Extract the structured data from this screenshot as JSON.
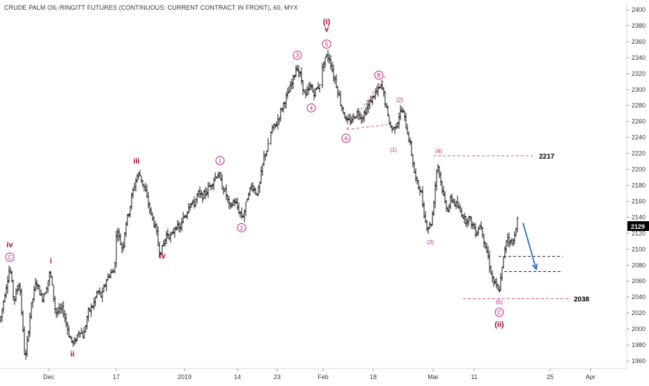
{
  "chart_data": {
    "type": "ohlc",
    "title": "CRUDE PALM OIL-RINGITT FUTURES (CONTINUOUS: CURRENT CONTRACT IN FRONT), 60, MYX",
    "y_ticks": [
      1960,
      1980,
      2000,
      2020,
      2040,
      2060,
      2080,
      2100,
      2120,
      2140,
      2160,
      2180,
      2200,
      2220,
      2240,
      2260,
      2280,
      2300,
      2320,
      2340,
      2360,
      2380,
      2400
    ],
    "ylim": [
      1950,
      2410
    ],
    "x_ticks": [
      "Dec",
      "17",
      "2019",
      "14",
      "23",
      "Feb",
      "18",
      "Mar",
      "11",
      "25",
      "Apr"
    ],
    "x_tick_slots": [
      70,
      167,
      265,
      341,
      398,
      464,
      536,
      622,
      681,
      790,
      848
    ],
    "last_price": "2129",
    "price_path": [
      [
        0,
        2010
      ],
      [
        8,
        2050
      ],
      [
        14,
        2078
      ],
      [
        20,
        2035
      ],
      [
        28,
        2060
      ],
      [
        36,
        1958
      ],
      [
        44,
        2025
      ],
      [
        52,
        2060
      ],
      [
        60,
        2038
      ],
      [
        66,
        2050
      ],
      [
        72,
        2072
      ],
      [
        80,
        2020
      ],
      [
        90,
        2025
      ],
      [
        100,
        1990
      ],
      [
        106,
        1980
      ],
      [
        114,
        2000
      ],
      [
        120,
        1990
      ],
      [
        126,
        2020
      ],
      [
        134,
        2030
      ],
      [
        140,
        2048
      ],
      [
        146,
        2040
      ],
      [
        152,
        2060
      ],
      [
        158,
        2070
      ],
      [
        164,
        2072
      ],
      [
        168,
        2130
      ],
      [
        172,
        2110
      ],
      [
        176,
        2100
      ],
      [
        180,
        2130
      ],
      [
        186,
        2150
      ],
      [
        190,
        2170
      ],
      [
        196,
        2190
      ],
      [
        200,
        2195
      ],
      [
        204,
        2185
      ],
      [
        208,
        2175
      ],
      [
        212,
        2160
      ],
      [
        218,
        2140
      ],
      [
        224,
        2125
      ],
      [
        228,
        2100
      ],
      [
        232,
        2098
      ],
      [
        236,
        2110
      ],
      [
        240,
        2120
      ],
      [
        246,
        2115
      ],
      [
        252,
        2130
      ],
      [
        258,
        2125
      ],
      [
        264,
        2140
      ],
      [
        268,
        2145
      ],
      [
        272,
        2160
      ],
      [
        278,
        2155
      ],
      [
        284,
        2170
      ],
      [
        290,
        2165
      ],
      [
        296,
        2172
      ],
      [
        302,
        2180
      ],
      [
        308,
        2190
      ],
      [
        314,
        2195
      ],
      [
        318,
        2180
      ],
      [
        322,
        2175
      ],
      [
        326,
        2165
      ],
      [
        330,
        2150
      ],
      [
        336,
        2162
      ],
      [
        342,
        2150
      ],
      [
        348,
        2140
      ],
      [
        352,
        2150
      ],
      [
        356,
        2170
      ],
      [
        362,
        2180
      ],
      [
        368,
        2170
      ],
      [
        372,
        2175
      ],
      [
        376,
        2200
      ],
      [
        380,
        2220
      ],
      [
        384,
        2225
      ],
      [
        390,
        2250
      ],
      [
        396,
        2255
      ],
      [
        402,
        2270
      ],
      [
        408,
        2285
      ],
      [
        414,
        2295
      ],
      [
        420,
        2310
      ],
      [
        426,
        2330
      ],
      [
        430,
        2320
      ],
      [
        434,
        2308
      ],
      [
        438,
        2290
      ],
      [
        442,
        2298
      ],
      [
        446,
        2305
      ],
      [
        450,
        2295
      ],
      [
        454,
        2300
      ],
      [
        458,
        2305
      ],
      [
        462,
        2320
      ],
      [
        466,
        2340
      ],
      [
        470,
        2342
      ],
      [
        474,
        2338
      ],
      [
        478,
        2320
      ],
      [
        482,
        2310
      ],
      [
        486,
        2295
      ],
      [
        490,
        2280
      ],
      [
        494,
        2270
      ],
      [
        498,
        2258
      ],
      [
        504,
        2262
      ],
      [
        510,
        2268
      ],
      [
        514,
        2272
      ],
      [
        520,
        2265
      ],
      [
        526,
        2275
      ],
      [
        532,
        2285
      ],
      [
        538,
        2295
      ],
      [
        544,
        2300
      ],
      [
        548,
        2305
      ],
      [
        552,
        2290
      ],
      [
        556,
        2270
      ],
      [
        560,
        2255
      ],
      [
        564,
        2250
      ],
      [
        570,
        2258
      ],
      [
        576,
        2275
      ],
      [
        580,
        2268
      ],
      [
        584,
        2250
      ],
      [
        588,
        2235
      ],
      [
        592,
        2215
      ],
      [
        596,
        2190
      ],
      [
        600,
        2180
      ],
      [
        604,
        2175
      ],
      [
        608,
        2150
      ],
      [
        612,
        2130
      ],
      [
        616,
        2128
      ],
      [
        620,
        2135
      ],
      [
        624,
        2170
      ],
      [
        628,
        2210
      ],
      [
        632,
        2190
      ],
      [
        636,
        2170
      ],
      [
        640,
        2155
      ],
      [
        644,
        2150
      ],
      [
        648,
        2165
      ],
      [
        652,
        2158
      ],
      [
        656,
        2155
      ],
      [
        660,
        2148
      ],
      [
        664,
        2145
      ],
      [
        668,
        2135
      ],
      [
        672,
        2140
      ],
      [
        676,
        2135
      ],
      [
        680,
        2128
      ],
      [
        684,
        2120
      ],
      [
        688,
        2130
      ],
      [
        692,
        2128
      ],
      [
        696,
        2105
      ],
      [
        700,
        2095
      ],
      [
        704,
        2075
      ],
      [
        708,
        2060
      ],
      [
        712,
        2055
      ],
      [
        716,
        2045
      ],
      [
        720,
        2068
      ],
      [
        724,
        2095
      ],
      [
        728,
        2118
      ],
      [
        732,
        2110
      ],
      [
        736,
        2105
      ],
      [
        740,
        2125
      ],
      [
        744,
        2140
      ]
    ],
    "wave_labels": [
      {
        "text": "iv",
        "slot": 14,
        "y": 2106,
        "style": "red"
      },
      {
        "text": "C",
        "slot": 14,
        "y": 2090,
        "style": "mag-circle"
      },
      {
        "text": "i",
        "slot": 73,
        "y": 2086,
        "style": "red"
      },
      {
        "text": "ii",
        "slot": 104,
        "y": 1969,
        "style": "red"
      },
      {
        "text": "iii",
        "slot": 196,
        "y": 2211,
        "style": "red"
      },
      {
        "text": "iv",
        "slot": 233,
        "y": 2092,
        "style": "red"
      },
      {
        "text": "1",
        "slot": 316,
        "y": 2211,
        "style": "mag-circle"
      },
      {
        "text": "2",
        "slot": 347,
        "y": 2127,
        "style": "mag-circle"
      },
      {
        "text": "3",
        "slot": 427,
        "y": 2343,
        "style": "mag-circle"
      },
      {
        "text": "4",
        "slot": 447,
        "y": 2277,
        "style": "mag-circle"
      },
      {
        "text": "(i)",
        "slot": 469,
        "y": 2385,
        "style": "red"
      },
      {
        "text": "v",
        "slot": 469,
        "y": 2376,
        "style": "red"
      },
      {
        "text": "5",
        "slot": 469,
        "y": 2357,
        "style": "mag-circle"
      },
      {
        "text": "A",
        "slot": 497,
        "y": 2239,
        "style": "mag-circle"
      },
      {
        "text": "B",
        "slot": 544,
        "y": 2318,
        "style": "mag-circle"
      },
      {
        "text": "(2)",
        "slot": 574,
        "y": 2287,
        "style": "mag"
      },
      {
        "text": "(1)",
        "slot": 565,
        "y": 2225,
        "style": "mag"
      },
      {
        "text": "(4)",
        "slot": 630,
        "y": 2223,
        "style": "mag"
      },
      {
        "text": "(3)",
        "slot": 618,
        "y": 2109,
        "style": "mag"
      },
      {
        "text": "(5)",
        "slot": 717,
        "y": 2034,
        "style": "mag"
      },
      {
        "text": "C",
        "slot": 717,
        "y": 2021,
        "style": "mag-circle"
      },
      {
        "text": "(ii)",
        "slot": 717,
        "y": 2006,
        "style": "red"
      }
    ],
    "levels": [
      {
        "value": 2217,
        "x_start": 622,
        "x_end": 768,
        "color": "#d9536b",
        "style": "dashed",
        "label": "2217"
      },
      {
        "value": 2038,
        "x_start": 665,
        "x_end": 818,
        "color": "#d9536b",
        "style": "dashed",
        "label": "2038"
      },
      {
        "value": 2091,
        "x_start": 716,
        "x_end": 808,
        "color": "#222222",
        "style": "dashed",
        "label": ""
      },
      {
        "value": 2072,
        "x_start": 724,
        "x_end": 808,
        "color": "#222222",
        "style": "dashed",
        "label": ""
      }
    ],
    "channel_lines": [
      {
        "from": [
          498,
          2250
        ],
        "to": [
          553,
          2317
        ],
        "color": "#d9536b",
        "style": "dashed"
      },
      {
        "from": [
          498,
          2250
        ],
        "to": [
          556,
          2256
        ],
        "color": "#d9536b",
        "style": "dashed"
      }
    ],
    "projection_arrow": {
      "from": [
        751,
        2133
      ],
      "to": [
        770,
        2075
      ],
      "color": "#3a78c4"
    }
  }
}
